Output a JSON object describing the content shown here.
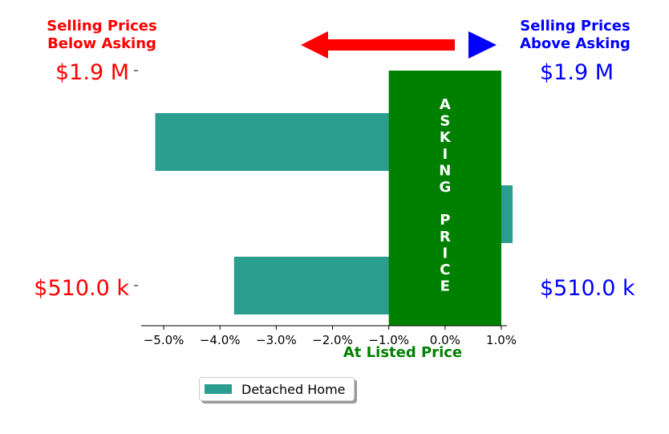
{
  "colors": {
    "below": "#ff0000",
    "above": "#0000ff",
    "bar": "#2a9d8f",
    "asking": "#008000",
    "asking_text": "#ffffff",
    "axis": "#000000"
  },
  "header": {
    "below_title": [
      "Selling Prices",
      "Below Asking"
    ],
    "above_title": [
      "Selling Prices",
      "Above Asking"
    ]
  },
  "labels": {
    "left_top": "$1.9 M",
    "left_bottom": "$510.0 k",
    "right_top": "$1.9 M",
    "right_bottom": "$510.0 k",
    "asking_letters": [
      "A",
      "S",
      "K",
      "I",
      "N",
      "G",
      "",
      "P",
      "R",
      "I",
      "C",
      "E"
    ],
    "xlabel": "At Listed Price"
  },
  "legend": {
    "label": "Detached Home"
  },
  "chart_data": {
    "type": "bar",
    "orientation": "horizontal",
    "series": [
      {
        "name": "Detached Home",
        "values": [
          -5.15,
          1.2,
          -3.75
        ]
      }
    ],
    "asking_band": [
      -1.0,
      1.0
    ],
    "xlim": [
      -5.4,
      1.1
    ],
    "xticks": [
      -5.0,
      -4.0,
      -3.0,
      -2.0,
      -1.0,
      0.0,
      1.0
    ],
    "xtick_labels": [
      "−5.0%",
      "−4.0%",
      "−3.0%",
      "−2.0%",
      "−1.0%",
      "0.0%",
      "1.0%"
    ],
    "xlabel": "At Listed Price",
    "price_labels": [
      "$1.9 M",
      "$510.0 k"
    ]
  }
}
